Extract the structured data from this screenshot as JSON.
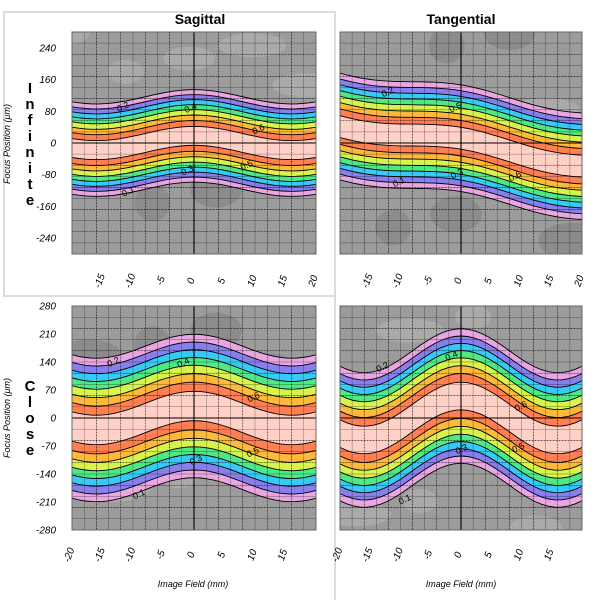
{
  "chart_data": [
    {
      "type": "heatmap",
      "title": "Sagittal",
      "row_label": "Infinite",
      "xlabel": "",
      "ylabel": "Focus Position (μm)",
      "xlim": [
        -20,
        20
      ],
      "ylim": [
        -280,
        280
      ],
      "x_ticks": [
        -15,
        -10,
        -5,
        0,
        5,
        10,
        15,
        20
      ],
      "y_ticks": [
        240,
        160,
        80,
        0,
        -80,
        -160,
        -240
      ],
      "contour_labels": [
        "0.1",
        "0.2",
        "0.3",
        "0.4",
        "0.5",
        "0.6"
      ],
      "peak_value": 0.6,
      "curve": {
        "amplitude": 18,
        "width": 52,
        "tilt": 0.0
      }
    },
    {
      "type": "heatmap",
      "title": "Tangential",
      "row_label": "Infinite",
      "xlabel": "",
      "ylabel": "",
      "xlim": [
        -20,
        20
      ],
      "ylim": [
        -280,
        280
      ],
      "x_ticks": [
        -15,
        -10,
        -5,
        0,
        5,
        10,
        15,
        20
      ],
      "y_ticks": [],
      "contour_labels": [
        "0.1",
        "0.2",
        "0.3",
        "0.5",
        "0.6"
      ],
      "peak_value": 0.6,
      "curve": {
        "amplitude": 12,
        "width": 60,
        "tilt": -2.5
      }
    },
    {
      "type": "heatmap",
      "title": "",
      "row_label": "Close",
      "xlabel": "Image Field (mm)",
      "ylabel": "Focus Position (μm)",
      "xlim": [
        -20,
        20
      ],
      "ylim": [
        -280,
        280
      ],
      "x_ticks": [
        -20,
        -15,
        -10,
        -5,
        0,
        5,
        10,
        15
      ],
      "y_ticks": [
        280,
        210,
        140,
        70,
        0,
        -70,
        -140,
        -210,
        -280
      ],
      "contour_labels": [
        "0.1",
        "0.2",
        "0.3",
        "0.4",
        "0.5",
        "0.6"
      ],
      "peak_value": 0.6,
      "curve": {
        "amplitude": 30,
        "width": 80,
        "tilt": 0.0
      }
    },
    {
      "type": "heatmap",
      "title": "",
      "row_label": "Close",
      "xlabel": "Image Field (mm)",
      "ylabel": "",
      "xlim": [
        -20,
        20
      ],
      "ylim": [
        -280,
        280
      ],
      "x_ticks": [
        -20,
        -15,
        -10,
        -5,
        0,
        5,
        10,
        15
      ],
      "y_ticks": [],
      "contour_labels": [
        "0.1",
        "0.2",
        "0.3",
        "0.4",
        "0.5",
        "0.6"
      ],
      "peak_value": 0.6,
      "curve": {
        "amplitude": 55,
        "width": 75,
        "tilt": 0.0
      }
    }
  ]
}
